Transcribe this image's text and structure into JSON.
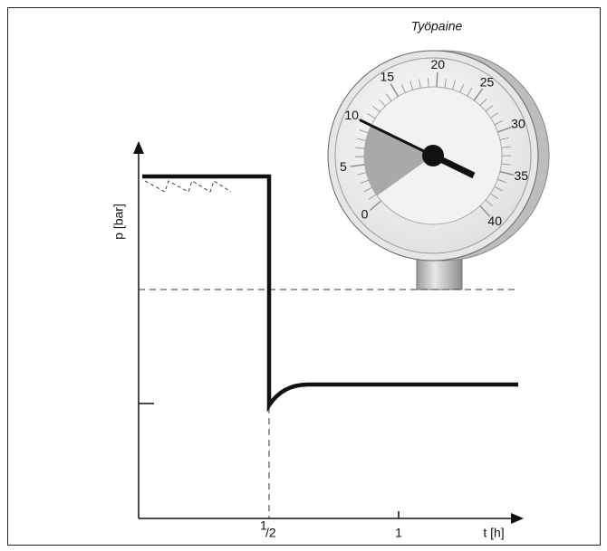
{
  "title": "Työpaine",
  "gauge": {
    "labels": [
      "0",
      "5",
      "10",
      "15",
      "20",
      "25",
      "30",
      "35",
      "40"
    ]
  },
  "axes": {
    "y_label": "p [bar]",
    "x_label": "t [h]",
    "x_ticks": [
      {
        "sup": "1",
        "main": "/2"
      },
      {
        "main": "1"
      }
    ]
  }
}
